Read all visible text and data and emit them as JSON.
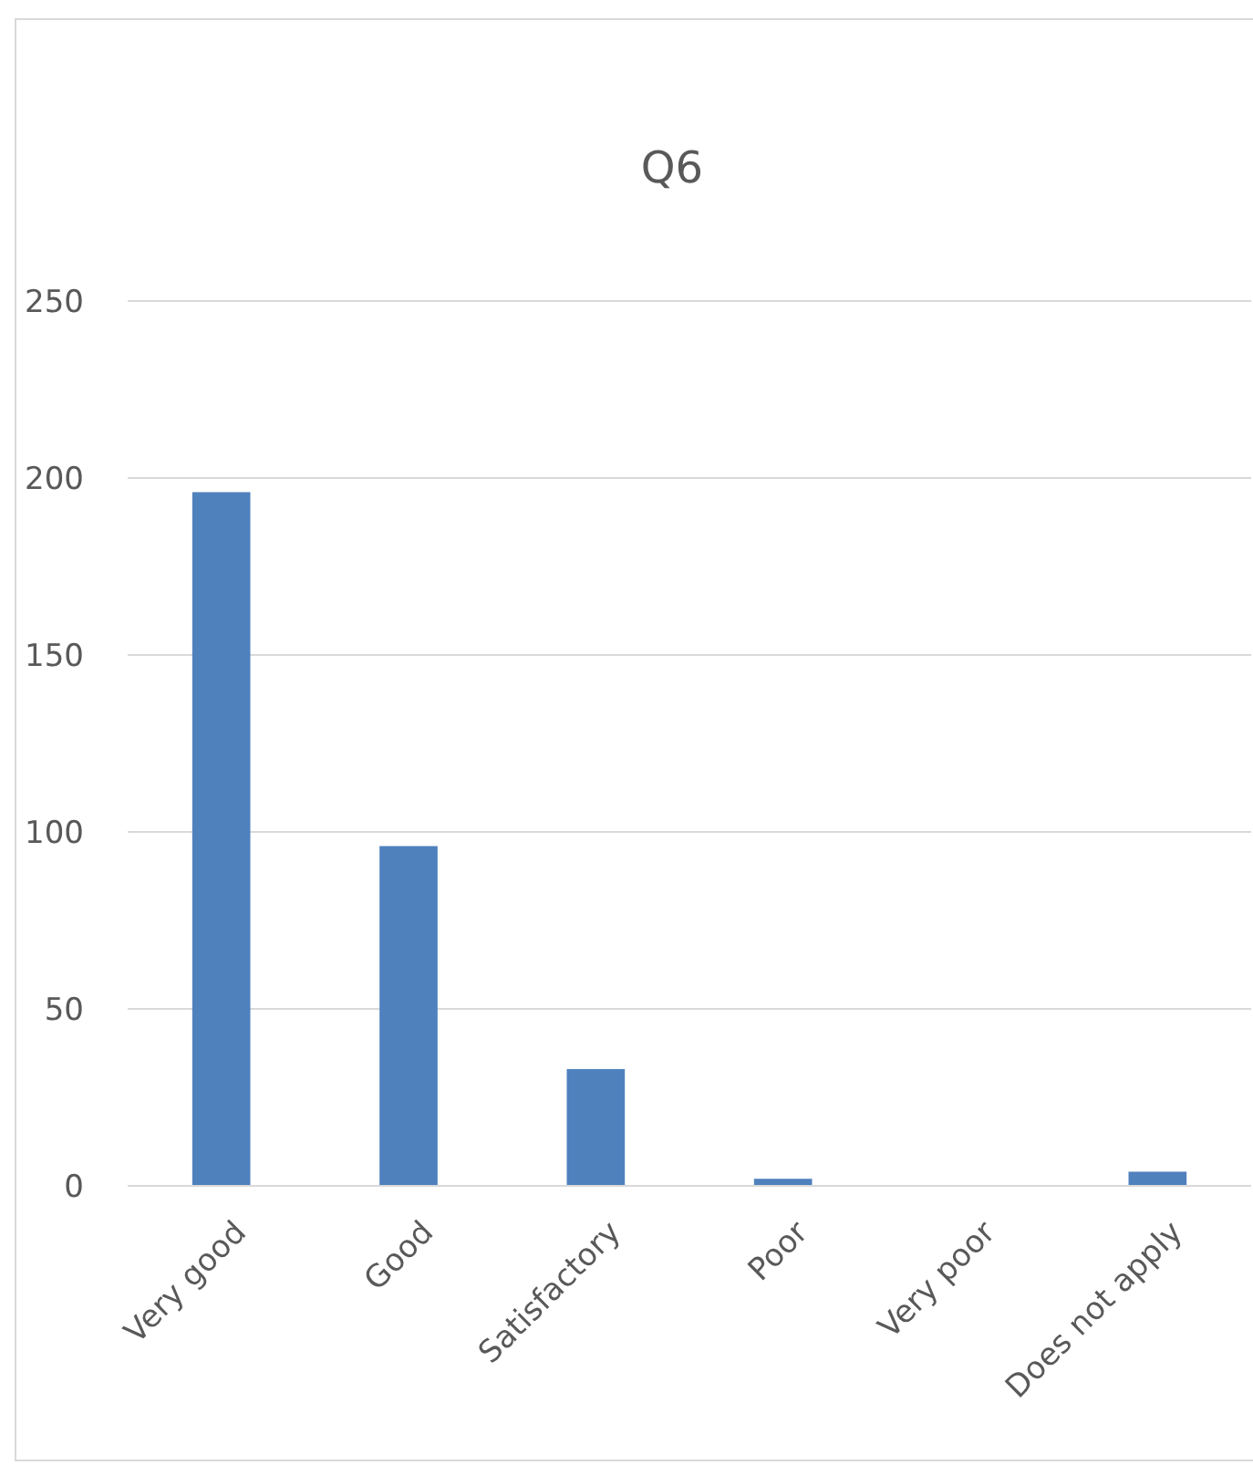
{
  "chart_data": {
    "type": "bar",
    "title": "Q6",
    "categories": [
      "Very good",
      "Good",
      "Satisfactory",
      "Poor",
      "Very poor",
      "Does not apply"
    ],
    "values": [
      196,
      96,
      33,
      2,
      0,
      4
    ],
    "color": "#4f81bd",
    "ylim": [
      0,
      250
    ],
    "yticks": [
      0,
      50,
      100,
      150,
      200,
      250
    ],
    "grid": "y"
  }
}
